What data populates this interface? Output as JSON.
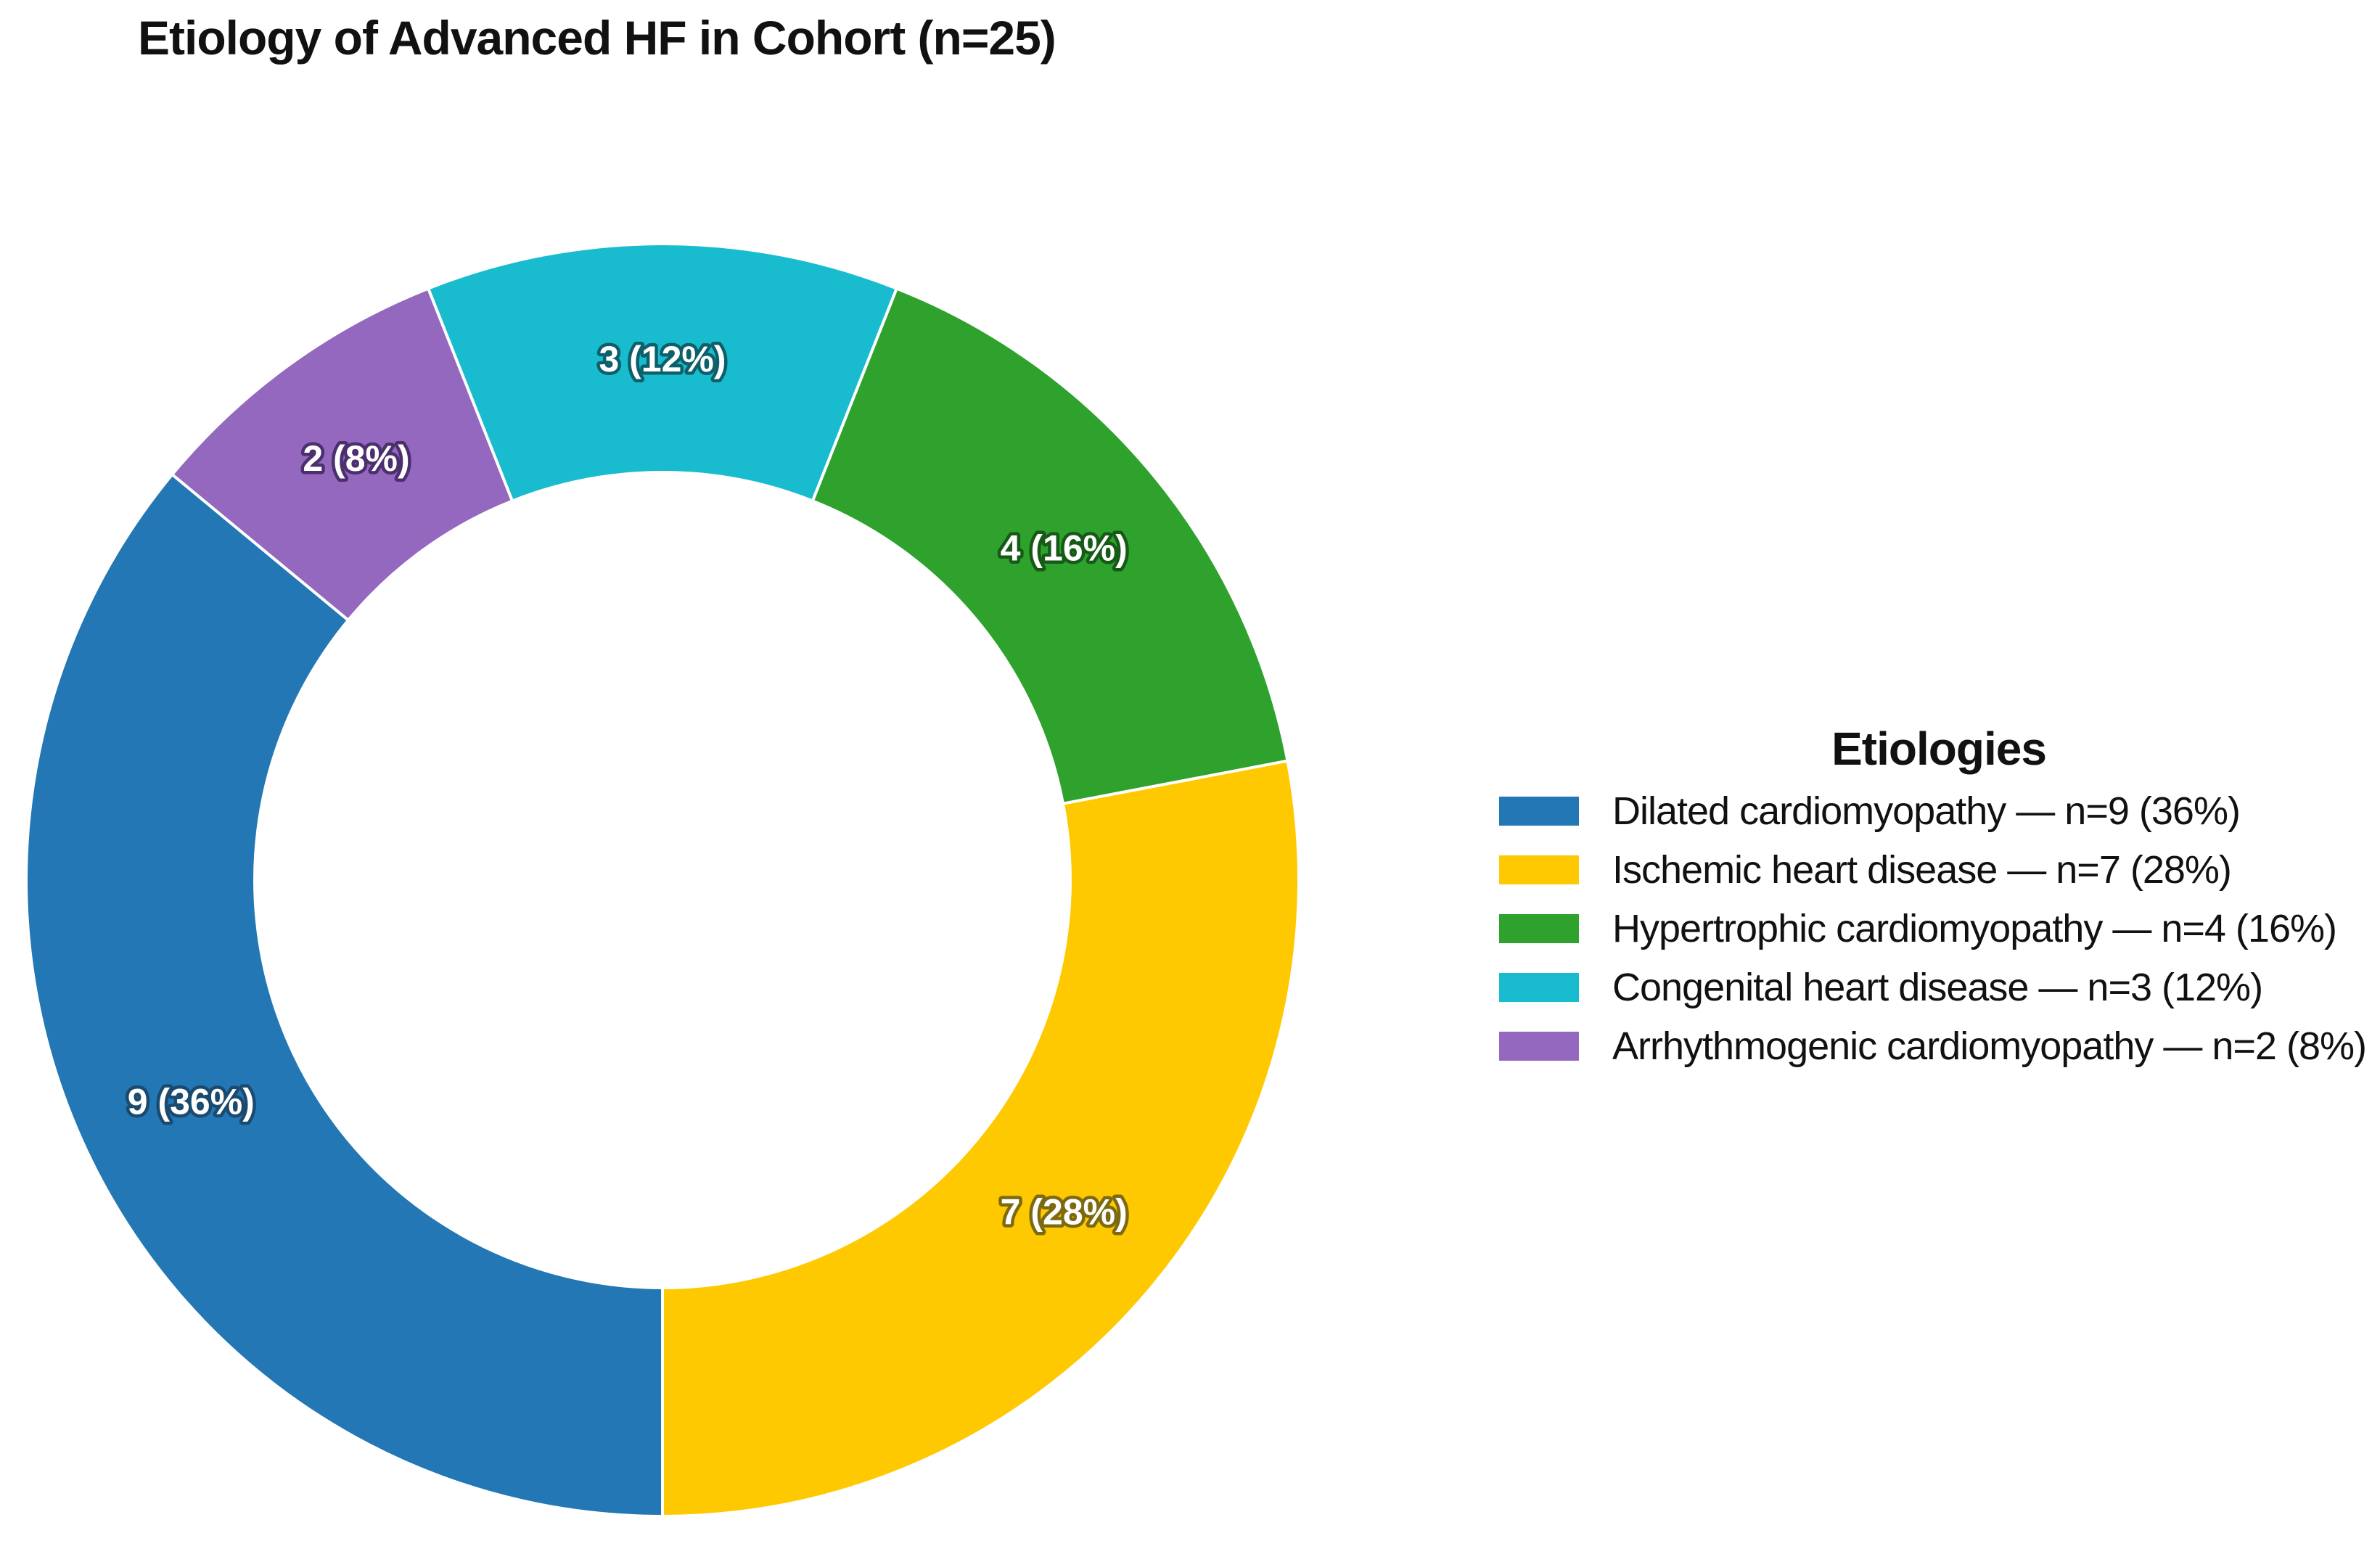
{
  "title": "Etiology of Advanced HF in Cohort (n=25)",
  "legend": {
    "title": "Etiologies",
    "items": [
      {
        "label": "Dilated cardiomyopathy — n=9 (36%)"
      },
      {
        "label": "Ischemic heart disease — n=7 (28%)"
      },
      {
        "label": "Hypertrophic cardiomyopathy — n=4 (16%)"
      },
      {
        "label": "Congenital heart disease — n=3 (12%)"
      },
      {
        "label": "Arrhythmogenic cardiomyopathy — n=2 (8%)"
      }
    ]
  },
  "chart_data": {
    "type": "pie",
    "subtype": "donut",
    "title": "Etiology of Advanced HF in Cohort (n=25)",
    "total_n": 25,
    "categories": [
      "Dilated cardiomyopathy",
      "Ischemic heart disease",
      "Hypertrophic cardiomyopathy",
      "Congenital heart disease",
      "Arrhythmogenic cardiomyopathy"
    ],
    "values": [
      9,
      7,
      4,
      3,
      2
    ],
    "percents": [
      36,
      28,
      16,
      12,
      8
    ],
    "slice_labels": [
      "9 (36%)",
      "7 (28%)",
      "4 (16%)",
      "3 (12%)",
      "2 (8%)"
    ],
    "colors": [
      "#2277B4",
      "#FEC900",
      "#2EA22C",
      "#19BCCE",
      "#9368BE"
    ],
    "label_outline_colors": [
      "#1B4A6F",
      "#7D6A10",
      "#175917",
      "#0D5F6B",
      "#4B2F6E"
    ],
    "legend_title": "Etiologies",
    "legend_position": "right",
    "start_position": "bottom",
    "direction_clockwise_order": [
      0,
      4,
      3,
      2,
      1
    ]
  }
}
